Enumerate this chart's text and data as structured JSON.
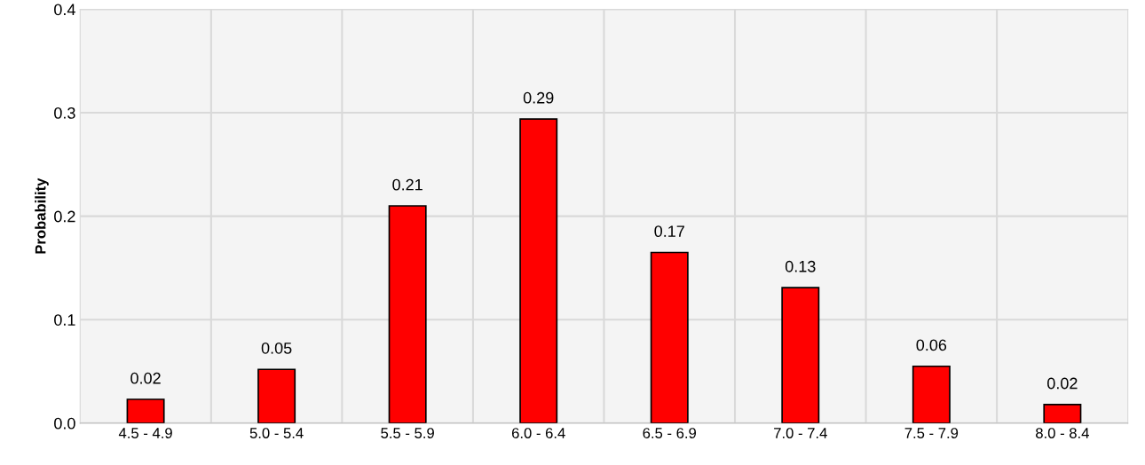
{
  "chart_data": {
    "type": "bar",
    "ylabel": "Probability",
    "categories": [
      "4.5 - 4.9",
      "5.0 - 5.4",
      "5.5 - 5.9",
      "6.0 - 6.4",
      "6.5 - 6.9",
      "7.0 - 7.4",
      "7.5 - 7.9",
      "8.0 - 8.4"
    ],
    "values": [
      0.023,
      0.052,
      0.21,
      0.294,
      0.165,
      0.131,
      0.055,
      0.018
    ],
    "value_labels": [
      "0.02",
      "0.05",
      "0.21",
      "0.29",
      "0.17",
      "0.13",
      "0.06",
      "0.02"
    ],
    "color": "#ff0000",
    "ylim": [
      0,
      0.4
    ],
    "yticks": [
      {
        "value": 0,
        "label": "0.0"
      },
      0.1,
      0.2,
      0.3,
      0.4
    ],
    "grid": true
  }
}
